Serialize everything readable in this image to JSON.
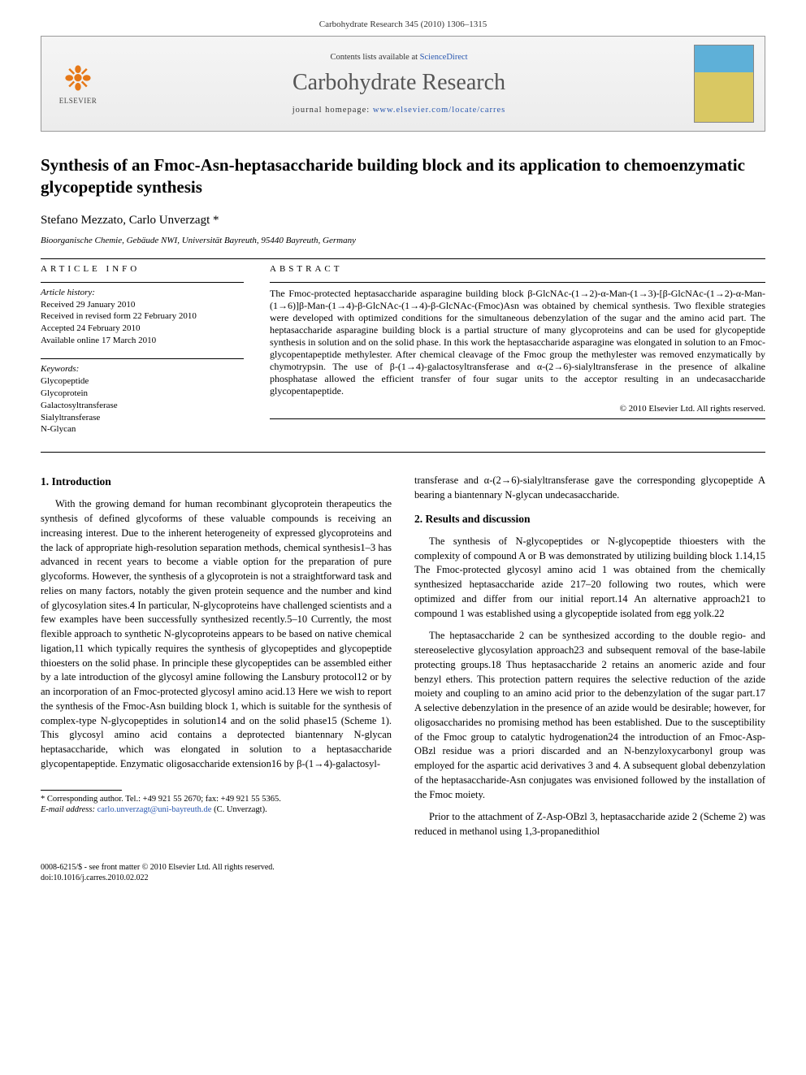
{
  "journal_header": "Carbohydrate Research 345 (2010) 1306–1315",
  "banner": {
    "contents_prefix": "Contents lists available at ",
    "contents_link": "ScienceDirect",
    "journal_name": "Carbohydrate Research",
    "homepage_prefix": "journal homepage: ",
    "homepage_url": "www.elsevier.com/locate/carres",
    "elsevier_label": "ELSEVIER"
  },
  "title": "Synthesis of an Fmoc-Asn-heptasaccharide building block and its application to chemoenzymatic glycopeptide synthesis",
  "authors": "Stefano Mezzato, Carlo Unverzagt *",
  "affiliation": "Bioorganische Chemie, Gebäude NWI, Universität Bayreuth, 95440 Bayreuth, Germany",
  "article_info_head": "ARTICLE INFO",
  "abstract_head": "ABSTRACT",
  "history_title": "Article history:",
  "history": [
    "Received 29 January 2010",
    "Received in revised form 22 February 2010",
    "Accepted 24 February 2010",
    "Available online 17 March 2010"
  ],
  "keywords_title": "Keywords:",
  "keywords": [
    "Glycopeptide",
    "Glycoprotein",
    "Galactosyltransferase",
    "Sialyltransferase",
    "N-Glycan"
  ],
  "abstract": "The Fmoc-protected heptasaccharide asparagine building block β-GlcNAc-(1→2)-α-Man-(1→3)-[β-GlcNAc-(1→2)-α-Man-(1→6)]β-Man-(1→4)-β-GlcNAc-(1→4)-β-GlcNAc-(Fmoc)Asn was obtained by chemical synthesis. Two flexible strategies were developed with optimized conditions for the simultaneous debenzylation of the sugar and the amino acid part. The heptasaccharide asparagine building block is a partial structure of many glycoproteins and can be used for glycopeptide synthesis in solution and on the solid phase. In this work the heptasaccharide asparagine was elongated in solution to an Fmoc-glycopentapeptide methylester. After chemical cleavage of the Fmoc group the methylester was removed enzymatically by chymotrypsin. The use of β-(1→4)-galactosyltransferase and α-(2→6)-sialyltransferase in the presence of alkaline phosphatase allowed the efficient transfer of four sugar units to the acceptor resulting in an undecasaccharide glycopentapeptide.",
  "copyright": "© 2010 Elsevier Ltd. All rights reserved.",
  "left_col": {
    "h": "1. Introduction",
    "p1": "With the growing demand for human recombinant glycoprotein therapeutics the synthesis of defined glycoforms of these valuable compounds is receiving an increasing interest. Due to the inherent heterogeneity of expressed glycoproteins and the lack of appropriate high-resolution separation methods, chemical synthesis1–3 has advanced in recent years to become a viable option for the preparation of pure glycoforms. However, the synthesis of a glycoprotein is not a straightforward task and relies on many factors, notably the given protein sequence and the number and kind of glycosylation sites.4 In particular, N-glycoproteins have challenged scientists and a few examples have been successfully synthesized recently.5–10 Currently, the most flexible approach to synthetic N-glycoproteins appears to be based on native chemical ligation,11 which typically requires the synthesis of glycopeptides and glycopeptide thioesters on the solid phase. In principle these glycopeptides can be assembled either by a late introduction of the glycosyl amine following the Lansbury protocol12 or by an incorporation of an Fmoc-protected glycosyl amino acid.13 Here we wish to report the synthesis of the Fmoc-Asn building block 1, which is suitable for the synthesis of complex-type N-glycopeptides in solution14 and on the solid phase15 (Scheme 1). This glycosyl amino acid contains a deprotected biantennary N-glycan heptasaccharide, which was elongated in solution to a heptasaccharide glycopentapeptide. Enzymatic oligosaccharide extension16 by β-(1→4)-galactosyl-"
  },
  "right_col": {
    "p0": "transferase and α-(2→6)-sialyltransferase gave the corresponding glycopeptide A bearing a biantennary N-glycan undecasaccharide.",
    "h": "2. Results and discussion",
    "p1": "The synthesis of N-glycopeptides or N-glycopeptide thioesters with the complexity of compound A or B was demonstrated by utilizing building block 1.14,15 The Fmoc-protected glycosyl amino acid 1 was obtained from the chemically synthesized heptasaccharide azide 217–20 following two routes, which were optimized and differ from our initial report.14 An alternative approach21 to compound 1 was established using a glycopeptide isolated from egg yolk.22",
    "p2": "The heptasaccharide 2 can be synthesized according to the double regio- and stereoselective glycosylation approach23 and subsequent removal of the base-labile protecting groups.18 Thus heptasaccharide 2 retains an anomeric azide and four benzyl ethers. This protection pattern requires the selective reduction of the azide moiety and coupling to an amino acid prior to the debenzylation of the sugar part.17 A selective debenzylation in the presence of an azide would be desirable; however, for oligosaccharides no promising method has been established. Due to the susceptibility of the Fmoc group to catalytic hydrogenation24 the introduction of an Fmoc-Asp-OBzl residue was a priori discarded and an N-benzyloxycarbonyl group was employed for the aspartic acid derivatives 3 and 4. A subsequent global debenzylation of the heptasaccharide-Asn conjugates was envisioned followed by the installation of the Fmoc moiety.",
    "p3": "Prior to the attachment of Z-Asp-OBzl 3, heptasaccharide azide 2 (Scheme 2) was reduced in methanol using 1,3-propanedithiol"
  },
  "footnote": {
    "star": "* Corresponding author. Tel.: +49 921 55 2670; fax: +49 921 55 5365.",
    "email_label": "E-mail address:",
    "email": "carlo.unverzagt@uni-bayreuth.de",
    "email_tail": "(C. Unverzagt)."
  },
  "footer": {
    "line1": "0008-6215/$ - see front matter © 2010 Elsevier Ltd. All rights reserved.",
    "line2": "doi:10.1016/j.carres.2010.02.022"
  }
}
